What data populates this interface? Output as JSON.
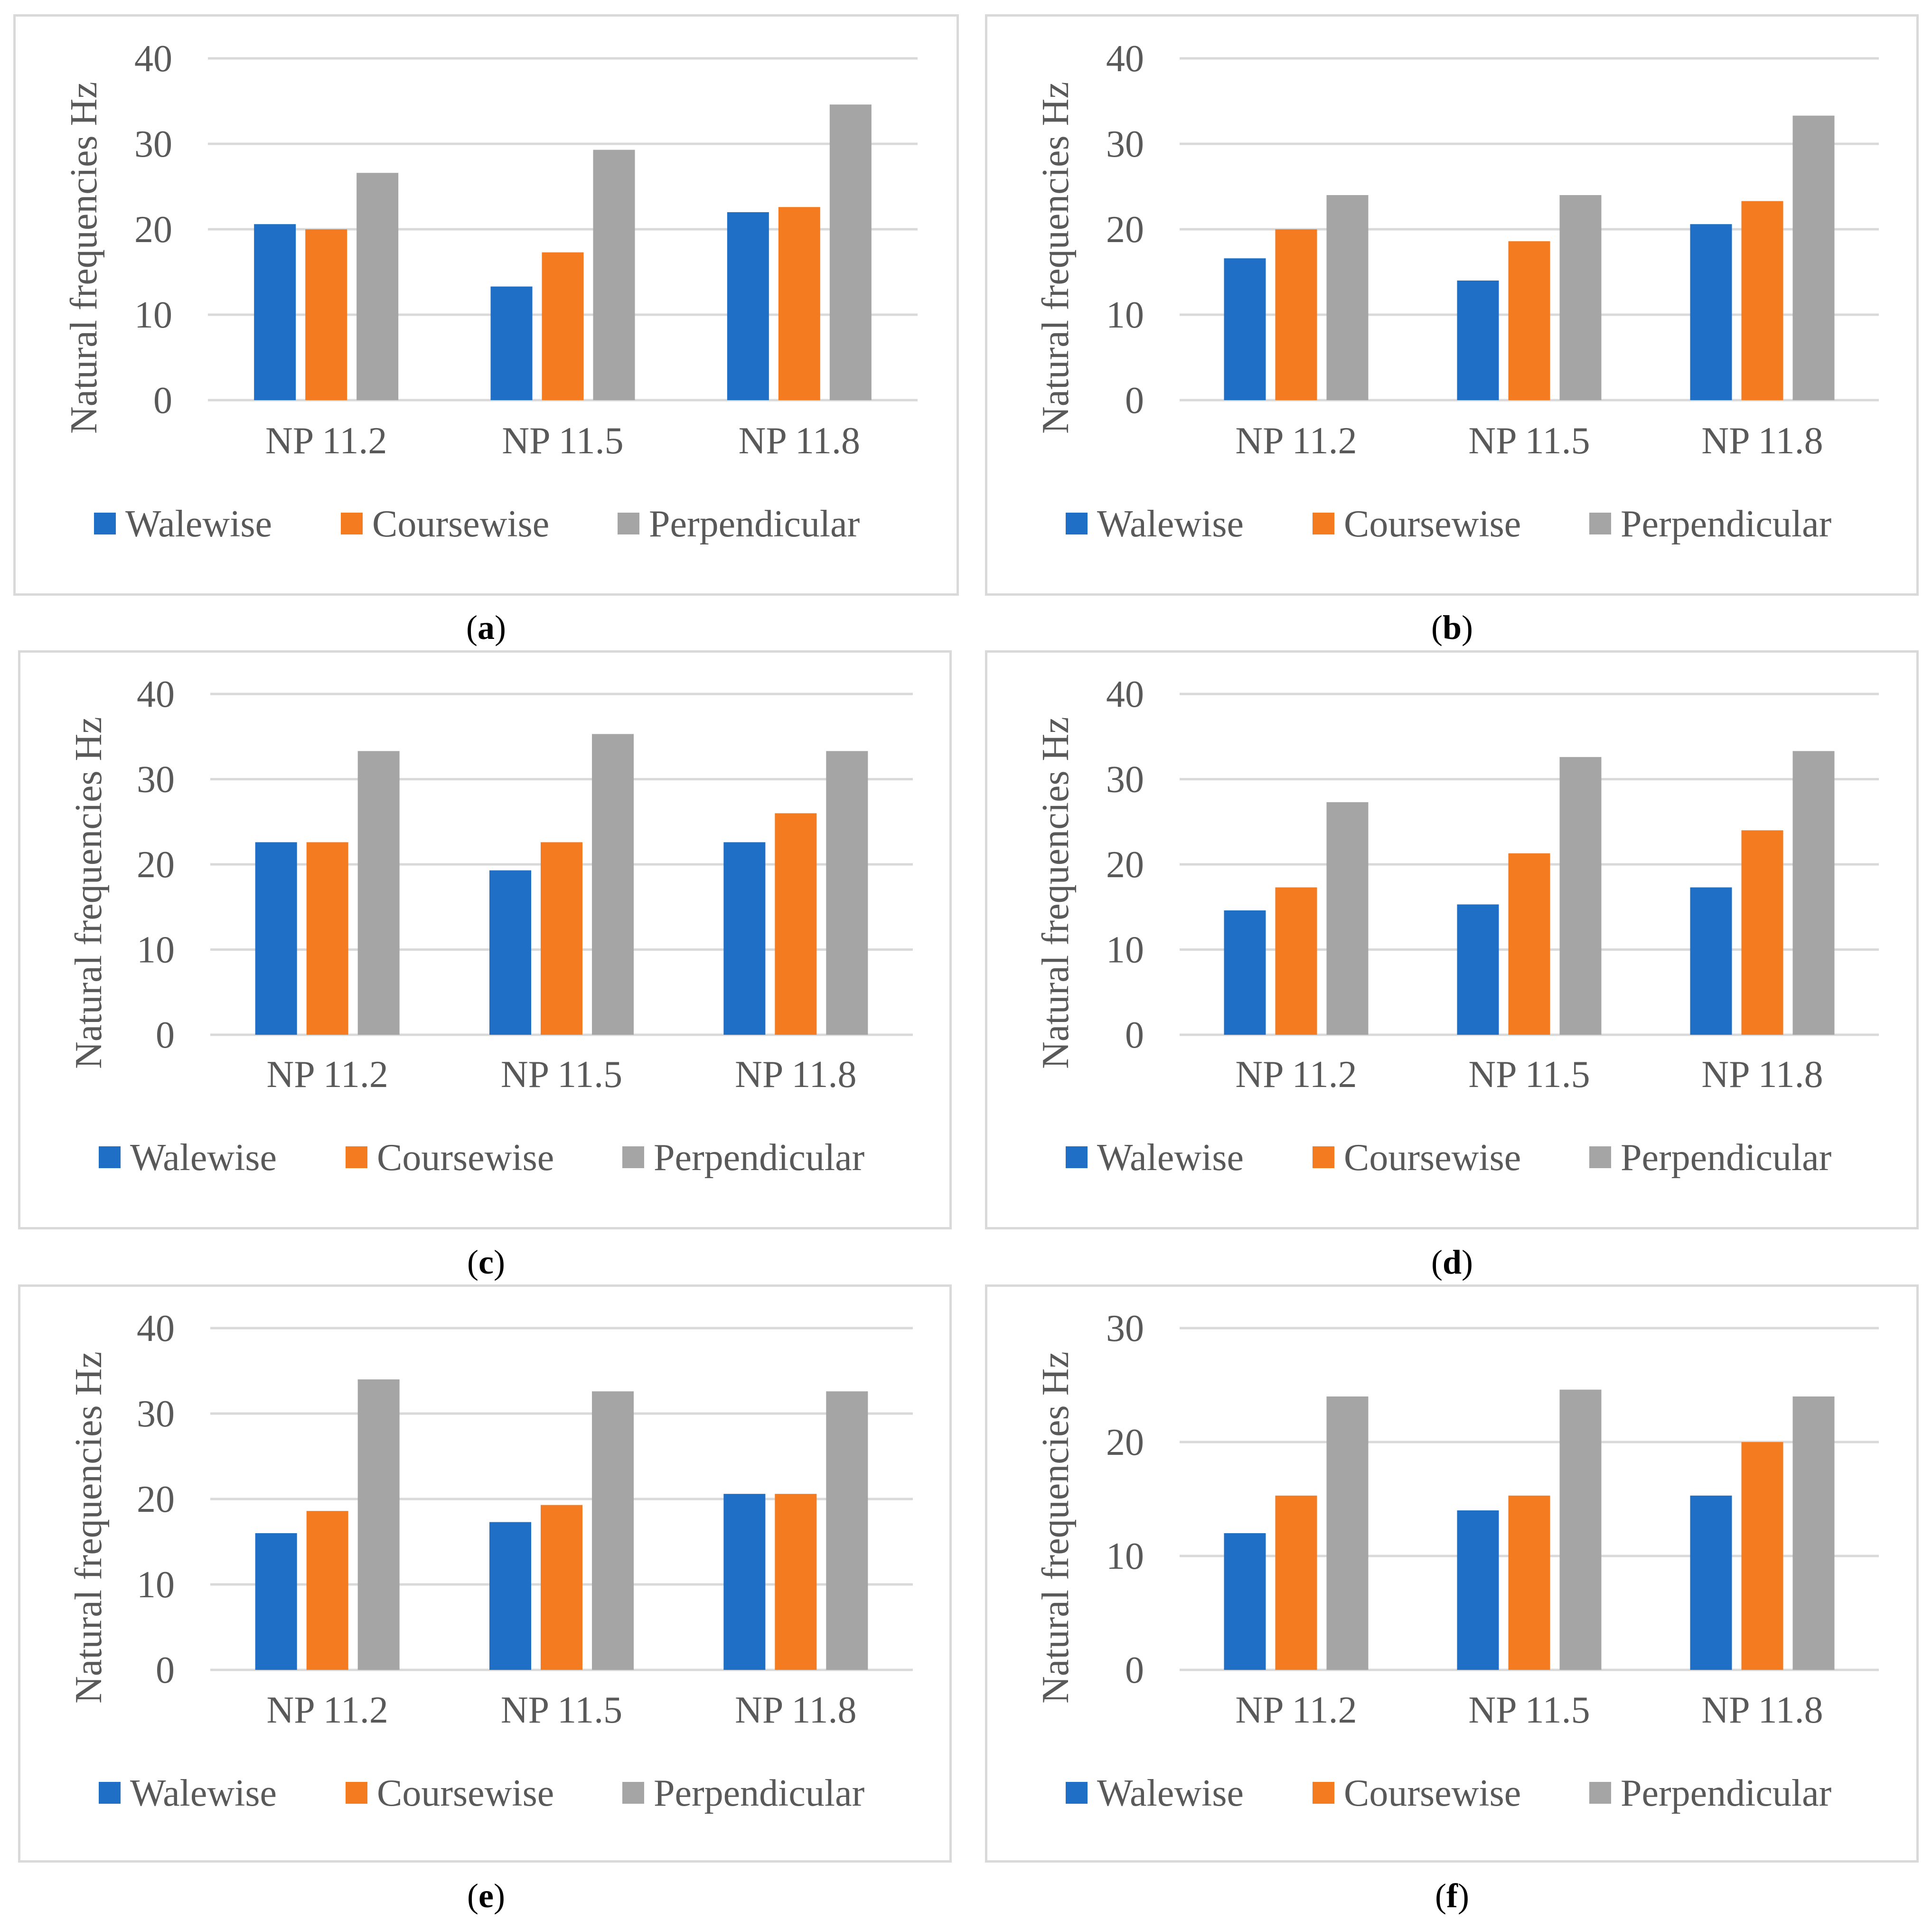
{
  "figure": {
    "legend": [
      "Walewise",
      "Coursewise",
      "Perpendicular"
    ],
    "colors": {
      "Walewise": "#1f6fc6",
      "Coursewise": "#f47b20",
      "Perpendicular": "#a5a5a5",
      "grid": "#d9d9d9",
      "text": "#595959"
    }
  },
  "chart_data": [
    {
      "id": "a",
      "type": "bar",
      "ylabel": "Natural frequencies Hz",
      "categories": [
        "NP 11.2",
        "NP 11.5",
        "NP 11.8"
      ],
      "ylim": [
        0,
        40
      ],
      "yticks": [
        0,
        10,
        20,
        30,
        40
      ],
      "series": [
        {
          "name": "Walewise",
          "values": [
            20.6,
            13.3,
            22.0
          ]
        },
        {
          "name": "Coursewise",
          "values": [
            20.0,
            17.3,
            22.6
          ]
        },
        {
          "name": "Perpendicular",
          "values": [
            26.6,
            29.3,
            34.6
          ]
        }
      ],
      "caption": {
        "open": "(",
        "letter": "a",
        "close": ")"
      }
    },
    {
      "id": "b",
      "type": "bar",
      "ylabel": "Natural frequencies Hz",
      "categories": [
        "NP 11.2",
        "NP 11.5",
        "NP 11.8"
      ],
      "ylim": [
        0,
        40
      ],
      "yticks": [
        0,
        10,
        20,
        30,
        40
      ],
      "series": [
        {
          "name": "Walewise",
          "values": [
            16.6,
            14.0,
            20.6
          ]
        },
        {
          "name": "Coursewise",
          "values": [
            20.0,
            18.6,
            23.3
          ]
        },
        {
          "name": "Perpendicular",
          "values": [
            24.0,
            24.0,
            33.3
          ]
        }
      ],
      "caption": {
        "open": "(",
        "letter": "b",
        "close": ")"
      }
    },
    {
      "id": "c",
      "type": "bar",
      "ylabel": "Natural frequencies Hz",
      "categories": [
        "NP 11.2",
        "NP 11.5",
        "NP 11.8"
      ],
      "ylim": [
        0,
        40
      ],
      "yticks": [
        0,
        10,
        20,
        30,
        40
      ],
      "series": [
        {
          "name": "Walewise",
          "values": [
            22.6,
            19.3,
            22.6
          ]
        },
        {
          "name": "Coursewise",
          "values": [
            22.6,
            22.6,
            26.0
          ]
        },
        {
          "name": "Perpendicular",
          "values": [
            33.3,
            35.3,
            33.3
          ]
        }
      ],
      "caption": {
        "open": "(",
        "letter": "c",
        "close": ")"
      }
    },
    {
      "id": "d",
      "type": "bar",
      "ylabel": "Natural frequencies Hz",
      "categories": [
        "NP 11.2",
        "NP 11.5",
        "NP 11.8"
      ],
      "ylim": [
        0,
        40
      ],
      "yticks": [
        0,
        10,
        20,
        30,
        40
      ],
      "series": [
        {
          "name": "Walewise",
          "values": [
            14.6,
            15.3,
            17.3
          ]
        },
        {
          "name": "Coursewise",
          "values": [
            17.3,
            21.3,
            24.0
          ]
        },
        {
          "name": "Perpendicular",
          "values": [
            27.3,
            32.6,
            33.3
          ]
        }
      ],
      "caption": {
        "open": "(",
        "letter": "d",
        "close": ")"
      }
    },
    {
      "id": "e",
      "type": "bar",
      "ylabel": "Natural frequencies Hz",
      "categories": [
        "NP 11.2",
        "NP 11.5",
        "NP 11.8"
      ],
      "ylim": [
        0,
        40
      ],
      "yticks": [
        0,
        10,
        20,
        30,
        40
      ],
      "series": [
        {
          "name": "Walewise",
          "values": [
            16.0,
            17.3,
            20.6
          ]
        },
        {
          "name": "Coursewise",
          "values": [
            18.6,
            19.3,
            20.6
          ]
        },
        {
          "name": "Perpendicular",
          "values": [
            34.0,
            32.6,
            32.6
          ]
        }
      ],
      "caption": {
        "open": "(",
        "letter": "e",
        "close": ")"
      }
    },
    {
      "id": "f",
      "type": "bar",
      "ylabel": "Natural frequencies Hz",
      "categories": [
        "NP 11.2",
        "NP 11.5",
        "NP 11.8"
      ],
      "ylim": [
        0,
        30
      ],
      "yticks": [
        0,
        10,
        20,
        30
      ],
      "series": [
        {
          "name": "Walewise",
          "values": [
            12.0,
            14.0,
            15.3
          ]
        },
        {
          "name": "Coursewise",
          "values": [
            15.3,
            15.3,
            20.0
          ]
        },
        {
          "name": "Perpendicular",
          "values": [
            24.0,
            24.6,
            24.0
          ]
        }
      ],
      "caption": {
        "open": "(",
        "letter": "f",
        "close": ")"
      }
    }
  ]
}
